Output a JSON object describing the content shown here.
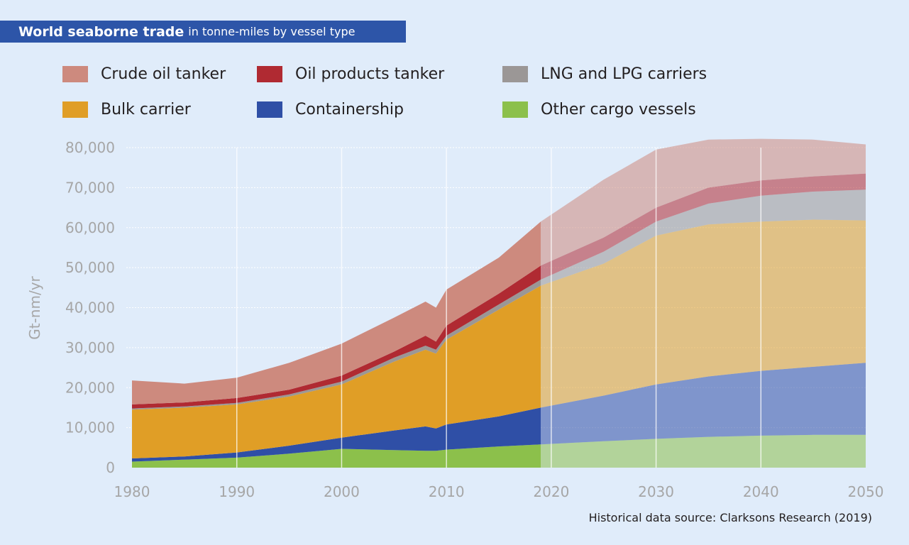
{
  "title": {
    "bold": "World seaborne trade",
    "light": "in tonne-miles by vessel type"
  },
  "source": "Historical data source: Clarksons Research (2019)",
  "chart_data": {
    "type": "area",
    "stacked": true,
    "title": "World seaborne trade in tonne-miles by vessel type",
    "xlabel": "",
    "ylabel": "Gt-nm/yr",
    "xlim": [
      1980,
      2050
    ],
    "ylim": [
      0,
      80000
    ],
    "x_ticks": [
      1980,
      1990,
      2000,
      2010,
      2020,
      2030,
      2040,
      2050
    ],
    "x_tick_labels": [
      "1980",
      "1990",
      "2000",
      "2010",
      "2020",
      "2030",
      "2040",
      "2050"
    ],
    "y_ticks": [
      0,
      10000,
      20000,
      30000,
      40000,
      50000,
      60000,
      70000,
      80000
    ],
    "y_tick_labels": [
      "0",
      "10,000",
      "20,000",
      "30,000",
      "40,000",
      "50,000",
      "60,000",
      "70,000",
      "80,000"
    ],
    "grid": {
      "horizontal": "dotted",
      "vertical_decades": true
    },
    "legend_position": "top",
    "historical_end_year": 2019,
    "projection_note": "Values after 2019 are projections (shown faded)",
    "x": [
      1980,
      1985,
      1990,
      1995,
      2000,
      2005,
      2008,
      2009,
      2010,
      2015,
      2019,
      2025,
      2030,
      2035,
      2040,
      2045,
      2050
    ],
    "series": [
      {
        "name": "Other cargo vessels",
        "color": "#8cc04b",
        "values": [
          1500,
          2000,
          2500,
          3500,
          4700,
          4400,
          4200,
          4200,
          4500,
          5300,
          5800,
          6600,
          7200,
          7700,
          8000,
          8200,
          8200
        ]
      },
      {
        "name": "Containership",
        "color": "#2f4fa6",
        "values": [
          800,
          800,
          1300,
          2000,
          2800,
          4900,
          6100,
          5600,
          6300,
          7500,
          9200,
          11400,
          13600,
          15100,
          16200,
          17000,
          18000
        ]
      },
      {
        "name": "Bulk carrier",
        "color": "#e09e26",
        "values": [
          12200,
          12200,
          12000,
          12300,
          13300,
          17200,
          19200,
          18700,
          21200,
          26700,
          30500,
          33000,
          37200,
          38000,
          37300,
          36800,
          35600
        ]
      },
      {
        "name": "LNG and LPG carriers",
        "color": "#9b9796",
        "values": [
          300,
          300,
          400,
          500,
          700,
          1000,
          1000,
          1000,
          1000,
          1300,
          1500,
          3000,
          3500,
          5200,
          6500,
          7000,
          7700
        ]
      },
      {
        "name": "Oil products tanker",
        "color": "#b02a32",
        "values": [
          1000,
          1000,
          1200,
          1200,
          1500,
          1500,
          2500,
          2000,
          2500,
          2700,
          3500,
          3500,
          3500,
          4000,
          3800,
          3800,
          4000
        ]
      },
      {
        "name": "Crude oil tanker",
        "color": "#cd8a7e",
        "values": [
          6000,
          4700,
          5100,
          6700,
          8000,
          8500,
          8500,
          8500,
          9000,
          9000,
          11000,
          14500,
          14500,
          12000,
          10400,
          9200,
          7300
        ]
      }
    ]
  },
  "legend": [
    {
      "label": "Crude oil tanker",
      "color": "#cd8a7e"
    },
    {
      "label": "Oil products tanker",
      "color": "#b02a32"
    },
    {
      "label": "LNG and LPG carriers",
      "color": "#9b9796"
    },
    {
      "label": "Bulk carrier",
      "color": "#e09e26"
    },
    {
      "label": "Containership",
      "color": "#2f4fa6"
    },
    {
      "label": "Other cargo vessels",
      "color": "#8cc04b"
    }
  ]
}
